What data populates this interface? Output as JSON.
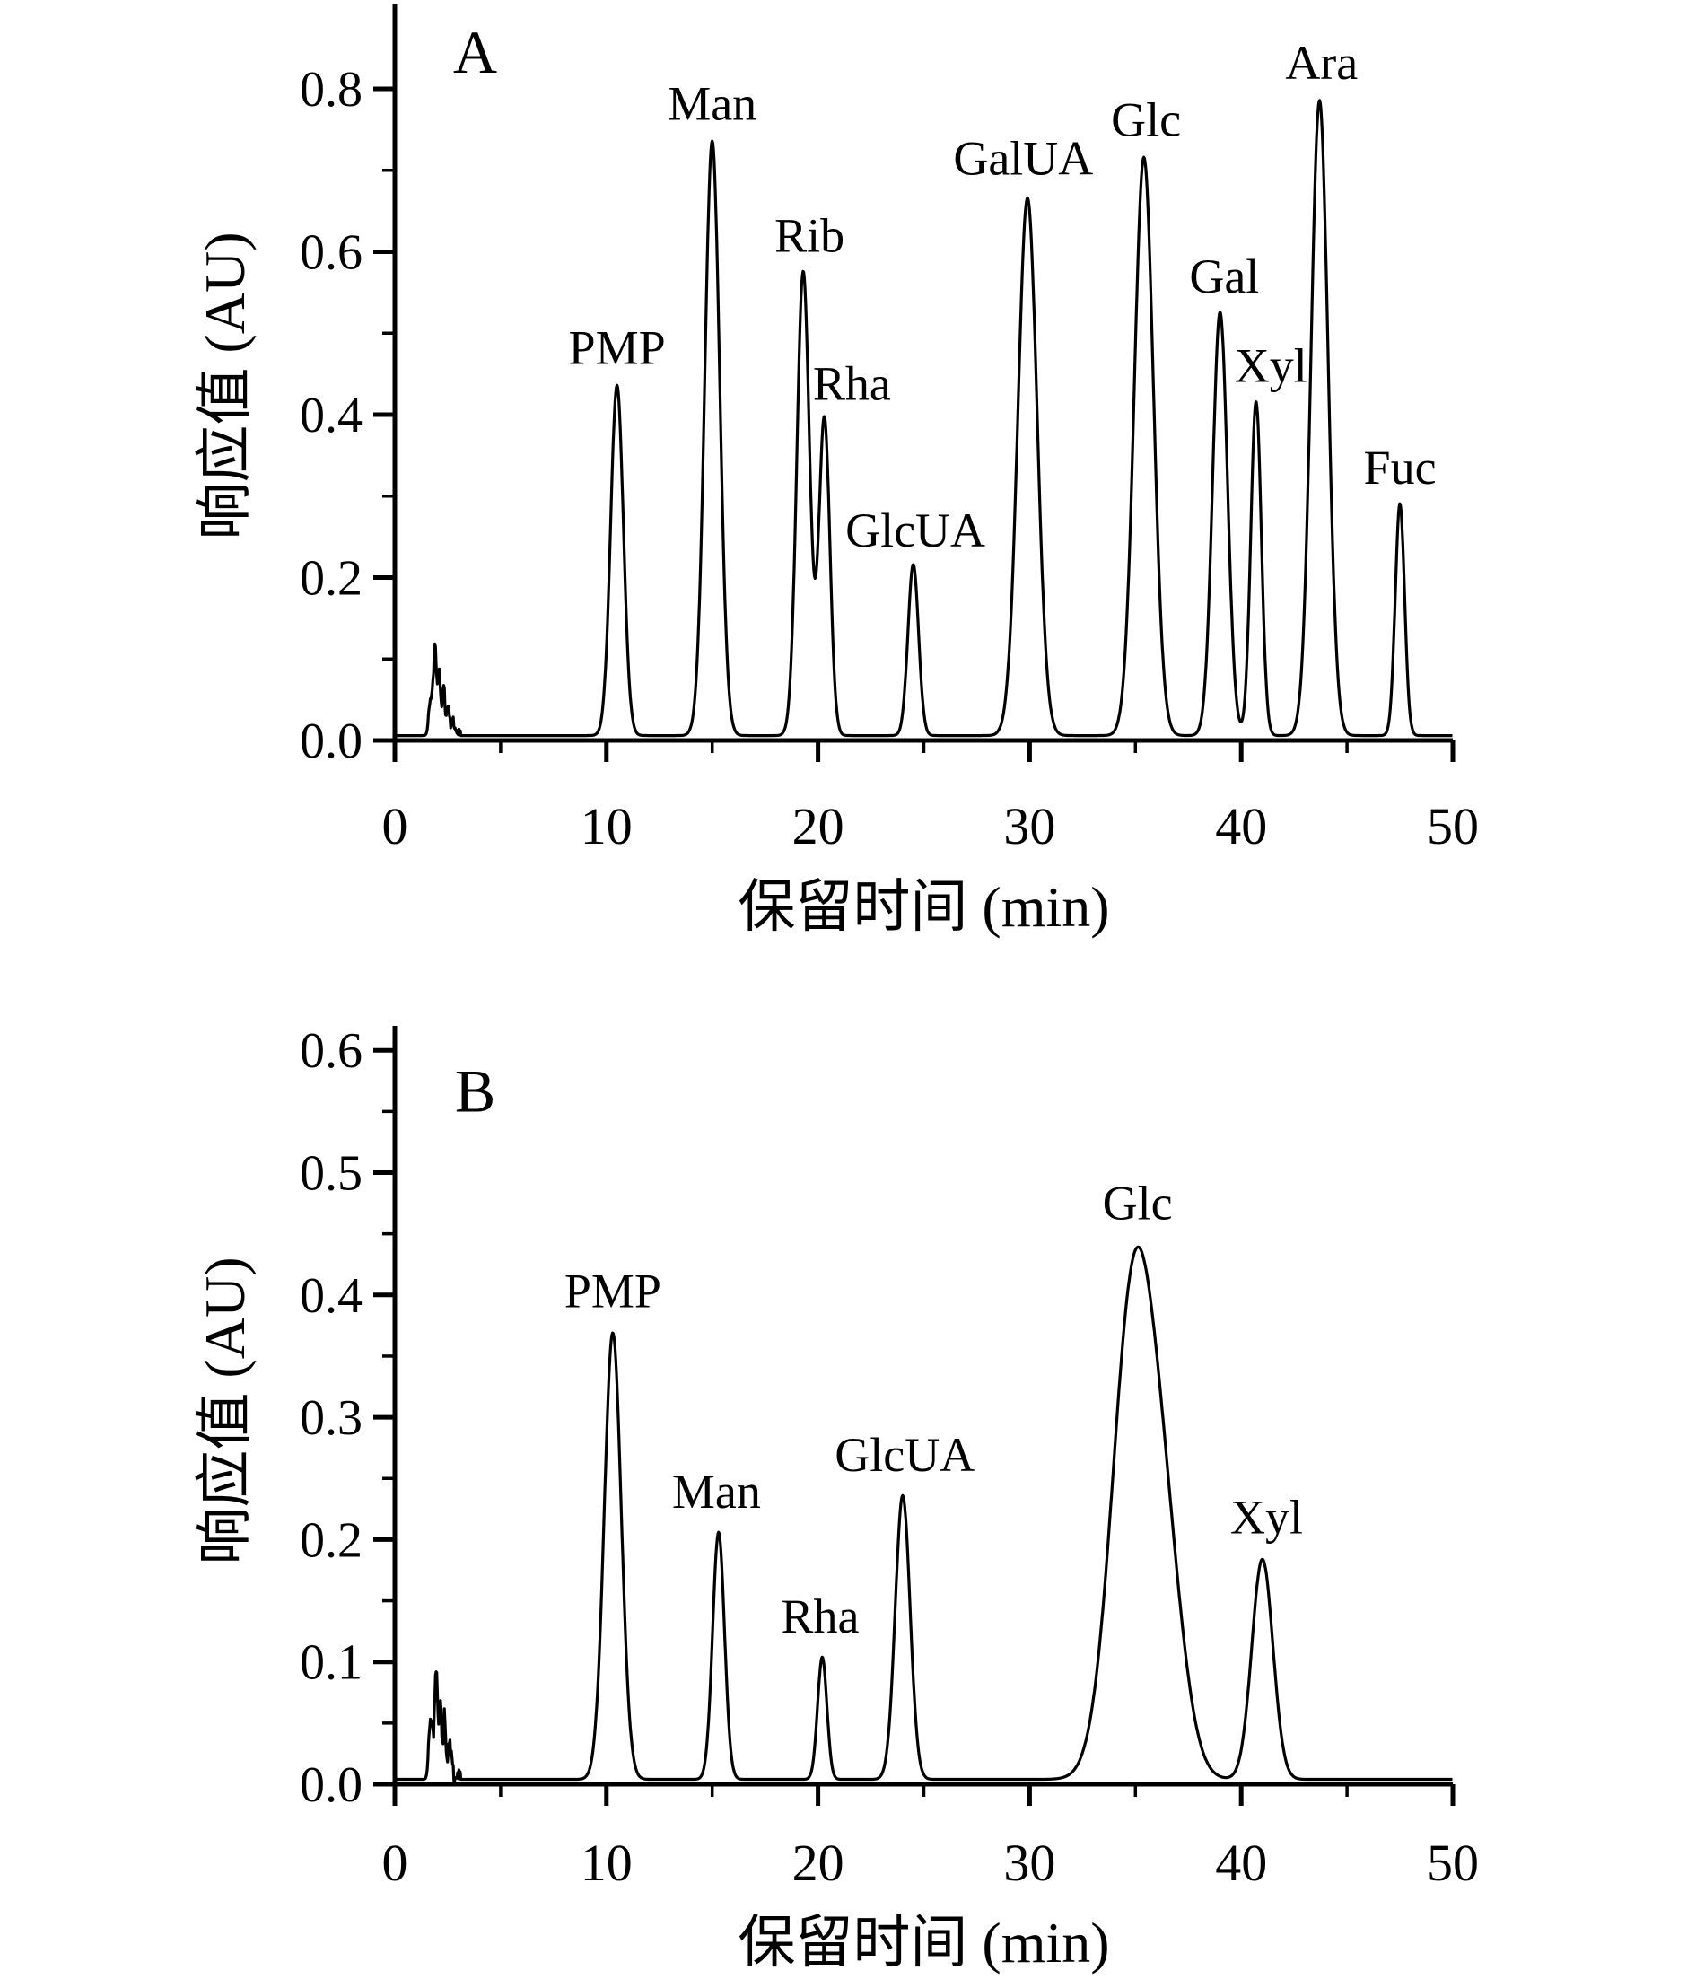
{
  "colors": {
    "line": "#000000",
    "background": "#ffffff",
    "text": "#000000"
  },
  "chart_data": [
    {
      "type": "line",
      "panel": "A",
      "xlabel": "保留时间 (min)",
      "ylabel": "响应值 (AU)",
      "xlim": [
        0,
        50
      ],
      "ylim": [
        0,
        0.9
      ],
      "grid": false,
      "baseline_au": 0.006,
      "xticks": [
        {
          "v": 0,
          "label": "0"
        },
        {
          "v": 10,
          "label": "10"
        },
        {
          "v": 20,
          "label": "20"
        },
        {
          "v": 30,
          "label": "30"
        },
        {
          "v": 40,
          "label": "40"
        },
        {
          "v": 50,
          "label": "50"
        }
      ],
      "xticks_minor": [
        5,
        15,
        25,
        35,
        45
      ],
      "yticks": [
        {
          "v": 0.0,
          "label": "0.0"
        },
        {
          "v": 0.2,
          "label": "0.2"
        },
        {
          "v": 0.4,
          "label": "0.4"
        },
        {
          "v": 0.6,
          "label": "0.6"
        },
        {
          "v": 0.8,
          "label": "0.8"
        }
      ],
      "yticks_minor": [
        0.1,
        0.3,
        0.5,
        0.7
      ],
      "panel_label": {
        "text": "A",
        "x": 3.8,
        "y": 0.82
      },
      "peaks": [
        {
          "name": "PMP",
          "retention_min": 10.5,
          "height_au": 0.43,
          "width_sigma_min": 0.3,
          "label_x": 10.5,
          "label_y": 0.462
        },
        {
          "name": "Man",
          "retention_min": 15.0,
          "height_au": 0.73,
          "width_sigma_min": 0.35,
          "label_x": 15.0,
          "label_y": 0.762
        },
        {
          "name": "Rib",
          "retention_min": 19.3,
          "height_au": 0.57,
          "width_sigma_min": 0.3,
          "label_x": 19.6,
          "label_y": 0.6
        },
        {
          "name": "Rha",
          "retention_min": 20.3,
          "height_au": 0.39,
          "width_sigma_min": 0.26,
          "label_x": 21.6,
          "label_y": 0.418
        },
        {
          "name": "GlcUA",
          "retention_min": 24.5,
          "height_au": 0.21,
          "width_sigma_min": 0.25,
          "label_x": 24.6,
          "label_y": 0.238
        },
        {
          "name": "GalUA",
          "retention_min": 29.9,
          "height_au": 0.66,
          "width_sigma_min": 0.45,
          "label_x": 29.7,
          "label_y": 0.695
        },
        {
          "name": "Glc",
          "retention_min": 35.4,
          "height_au": 0.71,
          "width_sigma_min": 0.45,
          "label_x": 35.5,
          "label_y": 0.742
        },
        {
          "name": "Gal",
          "retention_min": 39.0,
          "height_au": 0.52,
          "width_sigma_min": 0.35,
          "label_x": 39.2,
          "label_y": 0.55
        },
        {
          "name": "Xyl",
          "retention_min": 40.7,
          "height_au": 0.41,
          "width_sigma_min": 0.25,
          "label_x": 41.4,
          "label_y": 0.44
        },
        {
          "name": "Ara",
          "retention_min": 43.7,
          "height_au": 0.78,
          "width_sigma_min": 0.4,
          "label_x": 43.8,
          "label_y": 0.812
        },
        {
          "name": "Fuc",
          "retention_min": 47.5,
          "height_au": 0.285,
          "width_sigma_min": 0.22,
          "label_x": 47.5,
          "label_y": 0.315
        }
      ],
      "extra_components": [],
      "artifact_components": [
        {
          "t": 1.7,
          "h": 0.045,
          "w": 0.09
        },
        {
          "t": 1.9,
          "h": 0.105,
          "w": 0.07
        },
        {
          "t": 2.1,
          "h": 0.075,
          "w": 0.06
        },
        {
          "t": 2.3,
          "h": 0.06,
          "w": 0.06
        },
        {
          "t": 2.5,
          "h": 0.032,
          "w": 0.07
        },
        {
          "t": 2.75,
          "h": 0.015,
          "w": 0.09
        }
      ],
      "artifact_jitter": {
        "t0": 1.55,
        "t1": 3.1,
        "amp": 0.012
      }
    },
    {
      "type": "line",
      "panel": "B",
      "xlabel": "保留时间 (min)",
      "ylabel": "响应值 (AU)",
      "xlim": [
        0,
        50
      ],
      "ylim": [
        0,
        0.62
      ],
      "grid": false,
      "baseline_au": 0.004,
      "xticks": [
        {
          "v": 0,
          "label": "0"
        },
        {
          "v": 10,
          "label": "10"
        },
        {
          "v": 20,
          "label": "20"
        },
        {
          "v": 30,
          "label": "30"
        },
        {
          "v": 40,
          "label": "40"
        },
        {
          "v": 50,
          "label": "50"
        }
      ],
      "xticks_minor": [
        5,
        15,
        25,
        35,
        45
      ],
      "yticks": [
        {
          "v": 0.0,
          "label": "0.0"
        },
        {
          "v": 0.1,
          "label": "0.1"
        },
        {
          "v": 0.2,
          "label": "0.2"
        },
        {
          "v": 0.3,
          "label": "0.3"
        },
        {
          "v": 0.4,
          "label": "0.4"
        },
        {
          "v": 0.5,
          "label": "0.5"
        },
        {
          "v": 0.6,
          "label": "0.6"
        }
      ],
      "yticks_minor": [
        0.05,
        0.15,
        0.25,
        0.35,
        0.45,
        0.55
      ],
      "panel_label": {
        "text": "B",
        "x": 3.8,
        "y": 0.55
      },
      "peaks": [
        {
          "name": "PMP",
          "retention_min": 10.3,
          "height_au": 0.365,
          "width_sigma_min": 0.4,
          "label_x": 10.3,
          "label_y": 0.39
        },
        {
          "name": "Man",
          "retention_min": 15.3,
          "height_au": 0.202,
          "width_sigma_min": 0.28,
          "label_x": 15.2,
          "label_y": 0.226
        },
        {
          "name": "Rha",
          "retention_min": 20.2,
          "height_au": 0.1,
          "width_sigma_min": 0.22,
          "label_x": 20.1,
          "label_y": 0.124
        },
        {
          "name": "GlcUA",
          "retention_min": 24.0,
          "height_au": 0.232,
          "width_sigma_min": 0.35,
          "label_x": 24.1,
          "label_y": 0.256
        },
        {
          "name": "Glc",
          "retention_min": 34.9,
          "height_au": 0.39,
          "width_sigma_min": 1.0,
          "label_x": 35.1,
          "label_y": 0.462
        },
        {
          "name": "Xyl",
          "retention_min": 41.0,
          "height_au": 0.18,
          "width_sigma_min": 0.5,
          "label_x": 41.2,
          "label_y": 0.205
        }
      ],
      "extra_components": [
        {
          "t": 36.4,
          "h": 0.15,
          "w": 0.9
        }
      ],
      "artifact_components": [
        {
          "t": 1.7,
          "h": 0.05,
          "w": 0.09
        },
        {
          "t": 1.95,
          "h": 0.085,
          "w": 0.07
        },
        {
          "t": 2.15,
          "h": 0.06,
          "w": 0.06
        },
        {
          "t": 2.35,
          "h": 0.05,
          "w": 0.06
        },
        {
          "t": 2.6,
          "h": 0.025,
          "w": 0.08
        }
      ],
      "artifact_jitter": {
        "t0": 1.55,
        "t1": 3.1,
        "amp": 0.012
      }
    }
  ]
}
